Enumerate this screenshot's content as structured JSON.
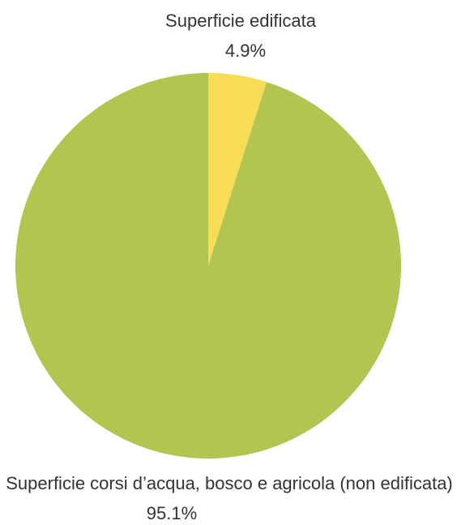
{
  "chart_data": {
    "type": "pie",
    "slices": [
      {
        "label": "Superficie edificata",
        "value": 4.9,
        "value_label": "4.9%",
        "color": "#f9dc55"
      },
      {
        "label": "Superficie corsi d’acqua, bosco e agricola (non edificata)",
        "value": 95.1,
        "value_label": "95.1%",
        "color": "#b2c551"
      }
    ],
    "start": "12 o'clock",
    "direction": "clockwise",
    "legend": "none"
  }
}
